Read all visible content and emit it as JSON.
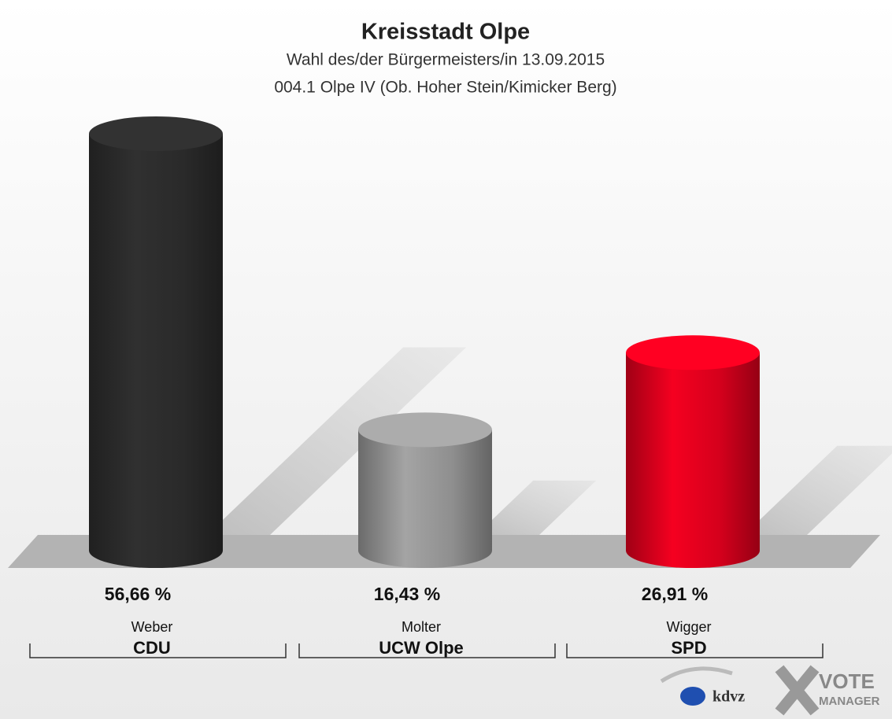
{
  "chart_data": {
    "type": "bar",
    "title": "Kreisstadt Olpe",
    "subtitle": [
      "Wahl des/der Bürgermeisters/in 13.09.2015",
      "004.1 Olpe IV (Ob. Hoher Stein/Kimicker Berg)"
    ],
    "categories": [
      "Weber",
      "Molter",
      "Wigger"
    ],
    "parties": [
      "CDU",
      "UCW Olpe",
      "SPD"
    ],
    "values": [
      56.66,
      16.43,
      26.91
    ],
    "value_labels": [
      "56,66 %",
      "16,43 %",
      "26,91 %"
    ],
    "colors": [
      "#2a2a2a",
      "#8f8f8f",
      "#d5001c"
    ],
    "logo": [
      "kdvz",
      "VOTE",
      "MANAGER"
    ]
  }
}
